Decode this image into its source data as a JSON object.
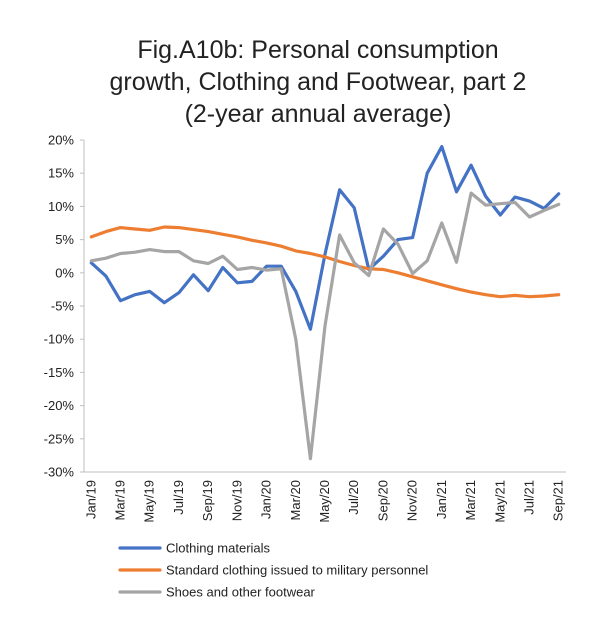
{
  "chart_data": {
    "type": "line",
    "title_lines": [
      "Fig.A10b: Personal consumption",
      "growth, Clothing and Footwear, part 2",
      "(2-year annual average)"
    ],
    "xlabel": "",
    "ylabel": "",
    "ylim": [
      -30,
      20
    ],
    "y_ticks": [
      "20%",
      "15%",
      "10%",
      "5%",
      "0%",
      "-5%",
      "-10%",
      "-15%",
      "-20%",
      "-25%",
      "-30%"
    ],
    "x_tick_labels": [
      "Jan/19",
      "Mar/19",
      "May/19",
      "Jul/19",
      "Sep/19",
      "Nov/19",
      "Jan/20",
      "Mar/20",
      "May/20",
      "Jul/20",
      "Sep/20",
      "Nov/20",
      "Jan/21",
      "Mar/21",
      "May/21",
      "Jul/21",
      "Sep/21"
    ],
    "months": [
      "Jan/19",
      "Feb/19",
      "Mar/19",
      "Apr/19",
      "May/19",
      "Jun/19",
      "Jul/19",
      "Aug/19",
      "Sep/19",
      "Oct/19",
      "Nov/19",
      "Dec/19",
      "Jan/20",
      "Feb/20",
      "Mar/20",
      "Apr/20",
      "May/20",
      "Jun/20",
      "Jul/20",
      "Aug/20",
      "Sep/20",
      "Oct/20",
      "Nov/20",
      "Dec/20",
      "Jan/21",
      "Feb/21",
      "Mar/21",
      "Apr/21",
      "May/21",
      "Jun/21",
      "Jul/21",
      "Aug/21",
      "Sep/21"
    ],
    "grid": false,
    "legend_position": "bottom",
    "series": [
      {
        "name": "Clothing materials",
        "color": "#4472C4",
        "values": [
          1.5,
          -0.5,
          -4.2,
          -3.3,
          -2.8,
          -4.5,
          -3.0,
          -0.3,
          -2.7,
          0.8,
          -1.5,
          -1.3,
          1.0,
          1.0,
          -2.8,
          -8.5,
          2.8,
          12.5,
          9.8,
          0.5,
          2.5,
          5.0,
          5.3,
          15.0,
          19.0,
          12.2,
          16.2,
          11.5,
          8.7,
          11.4,
          10.8,
          9.7,
          11.9
        ]
      },
      {
        "name": "Standard clothing issued to military personnel",
        "color": "#ED7D31",
        "values": [
          5.4,
          6.2,
          6.8,
          6.6,
          6.4,
          6.9,
          6.8,
          6.5,
          6.2,
          5.8,
          5.4,
          4.9,
          4.5,
          4.0,
          3.3,
          2.9,
          2.4,
          1.7,
          1.1,
          0.6,
          0.5,
          0.0,
          -0.6,
          -1.2,
          -1.8,
          -2.4,
          -2.9,
          -3.3,
          -3.6,
          -3.4,
          -3.6,
          -3.5,
          -3.3
        ]
      },
      {
        "name": "Shoes and other footwear",
        "color": "#A5A5A5",
        "values": [
          1.8,
          2.2,
          2.9,
          3.1,
          3.5,
          3.2,
          3.2,
          1.8,
          1.4,
          2.5,
          0.5,
          0.8,
          0.4,
          0.6,
          -10.0,
          -28.0,
          -8.0,
          5.7,
          1.5,
          -0.4,
          6.6,
          4.3,
          -0.1,
          1.8,
          7.5,
          1.6,
          12.0,
          10.2,
          10.4,
          10.6,
          8.4,
          9.4,
          10.3
        ]
      }
    ]
  }
}
